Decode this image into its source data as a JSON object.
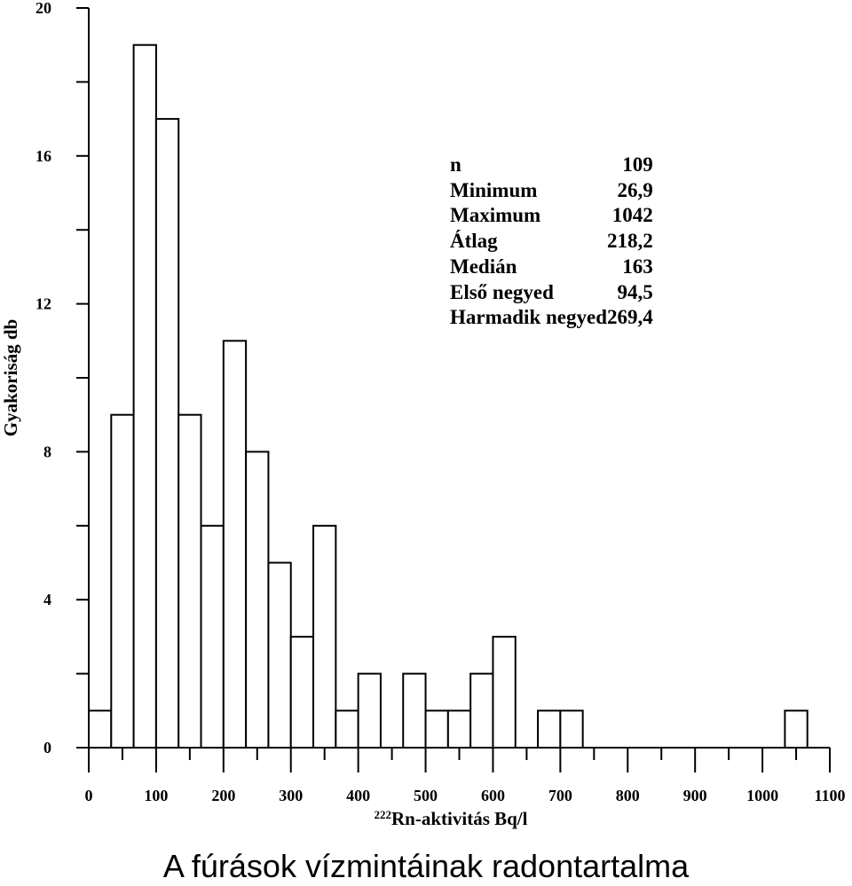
{
  "chart_data": {
    "type": "bar",
    "subtype": "histogram",
    "title": "A fúrások vízmintáinak radontartalma",
    "xlabel_sup": "222",
    "xlabel": "Rn-aktivitás  Bq/l",
    "ylabel": "Gyakoriság db",
    "xlim": [
      0,
      1100
    ],
    "ylim": [
      0,
      20
    ],
    "x_ticks": [
      "0",
      "100",
      "200",
      "300",
      "400",
      "500",
      "600",
      "700",
      "800",
      "900",
      "1000",
      "1100"
    ],
    "y_ticks": [
      "0",
      "4",
      "8",
      "12",
      "16",
      "20"
    ],
    "bin_width": 33.33,
    "bins": [
      {
        "start": 0,
        "end": 33.33,
        "count": 1
      },
      {
        "start": 33.33,
        "end": 66.67,
        "count": 9
      },
      {
        "start": 66.67,
        "end": 100,
        "count": 19
      },
      {
        "start": 100,
        "end": 133.33,
        "count": 17
      },
      {
        "start": 133.33,
        "end": 166.67,
        "count": 9
      },
      {
        "start": 166.67,
        "end": 200,
        "count": 6
      },
      {
        "start": 200,
        "end": 233.33,
        "count": 11
      },
      {
        "start": 233.33,
        "end": 266.67,
        "count": 8
      },
      {
        "start": 266.67,
        "end": 300,
        "count": 5
      },
      {
        "start": 300,
        "end": 333.33,
        "count": 3
      },
      {
        "start": 333.33,
        "end": 366.67,
        "count": 6
      },
      {
        "start": 366.67,
        "end": 400,
        "count": 1
      },
      {
        "start": 400,
        "end": 433.33,
        "count": 2
      },
      {
        "start": 433.33,
        "end": 466.67,
        "count": 0
      },
      {
        "start": 466.67,
        "end": 500,
        "count": 2
      },
      {
        "start": 500,
        "end": 533.33,
        "count": 1
      },
      {
        "start": 533.33,
        "end": 566.67,
        "count": 1
      },
      {
        "start": 566.67,
        "end": 600,
        "count": 2
      },
      {
        "start": 600,
        "end": 633.33,
        "count": 3
      },
      {
        "start": 633.33,
        "end": 666.67,
        "count": 0
      },
      {
        "start": 666.67,
        "end": 700,
        "count": 1
      },
      {
        "start": 700,
        "end": 733.33,
        "count": 1
      },
      {
        "start": 1033.33,
        "end": 1066.67,
        "count": 1
      }
    ],
    "stats": [
      {
        "label": "n",
        "value": "109"
      },
      {
        "label": "Minimum",
        "value": "26,9"
      },
      {
        "label": "Maximum",
        "value": "1042"
      },
      {
        "label": "Átlag",
        "value": "218,2"
      },
      {
        "label": "Medián",
        "value": "163"
      },
      {
        "label": "Első negyed",
        "value": "94,5"
      },
      {
        "label": "Harmadik negyed",
        "value": "269,4"
      }
    ],
    "grid": false,
    "colors": {
      "bar_fill": "#ffffff",
      "bar_stroke": "#000000",
      "axis": "#000000"
    }
  }
}
